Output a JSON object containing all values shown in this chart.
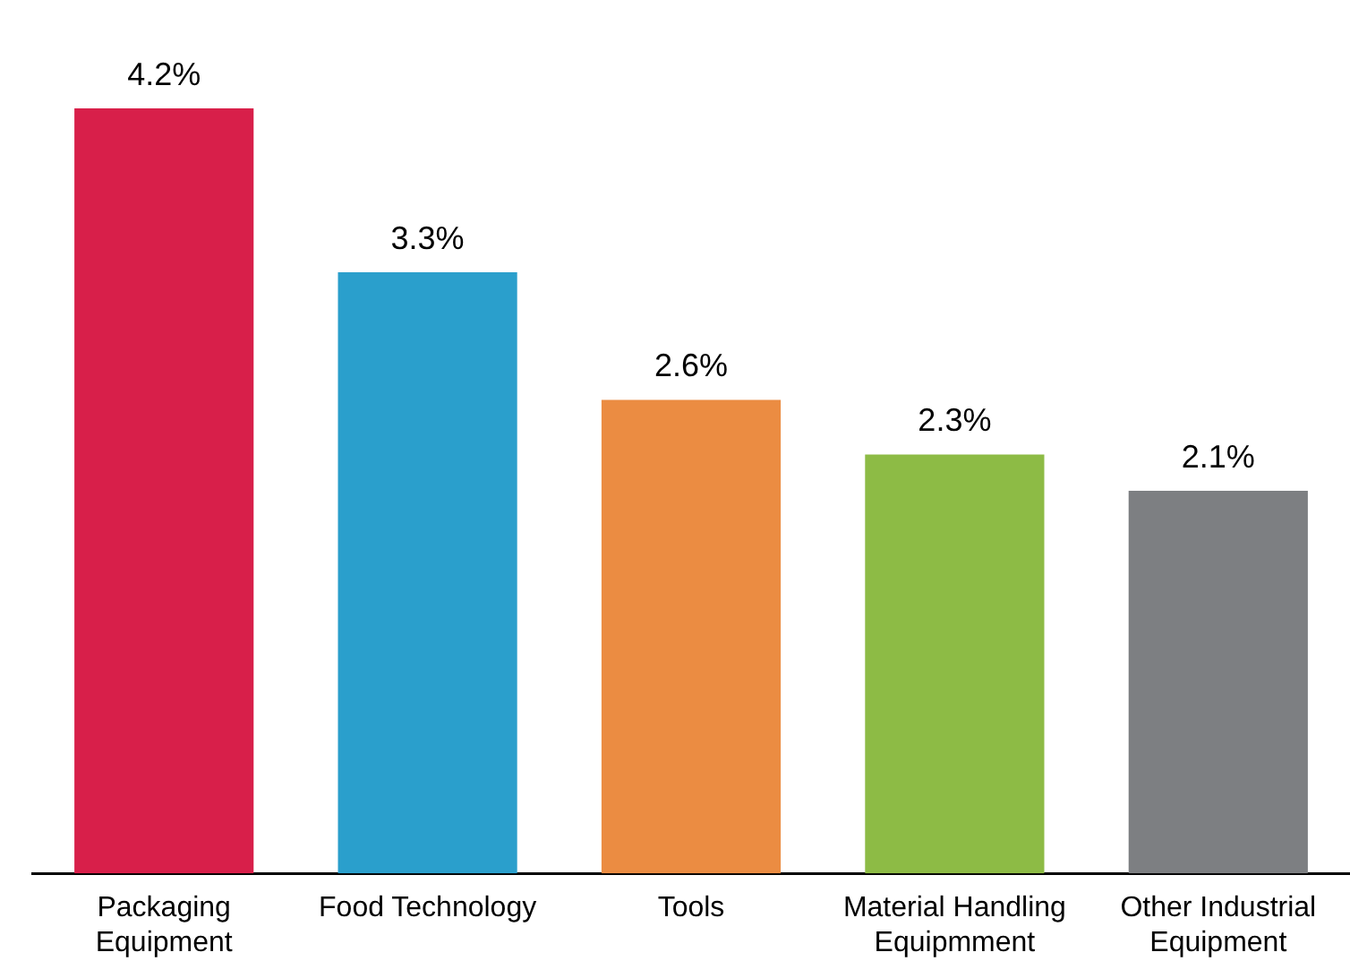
{
  "chart_data": {
    "type": "bar",
    "categories": [
      "Packaging Equipment",
      "Food Technology",
      "Tools",
      "Material Handling Equipmment",
      "Other Industrial Equipment"
    ],
    "values": [
      4.2,
      3.3,
      2.6,
      2.3,
      2.1
    ],
    "colors": [
      "#d81f4a",
      "#2a9fcc",
      "#eb8c42",
      "#8dbb45",
      "#7d7f82"
    ],
    "value_labels": [
      "4.2%",
      "3.3%",
      "2.6%",
      "2.3%",
      "2.1%"
    ],
    "grid": false,
    "legend": false
  }
}
